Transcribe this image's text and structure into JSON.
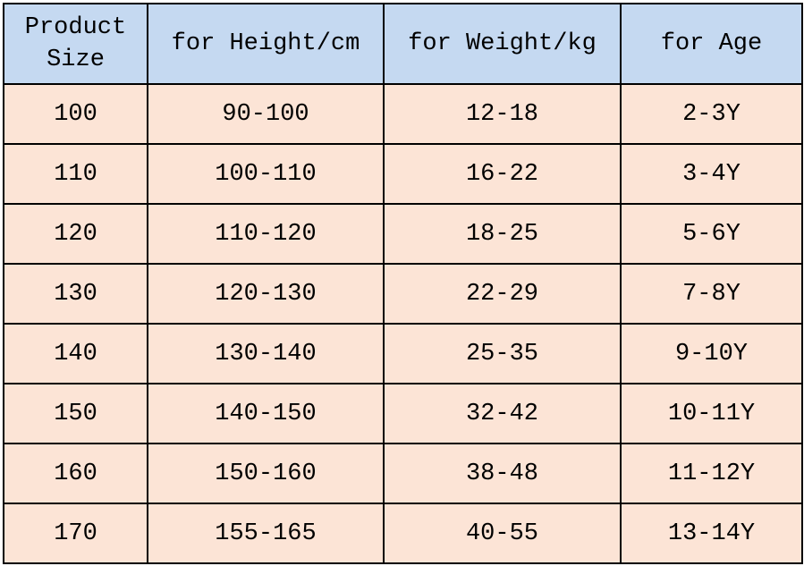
{
  "table": {
    "header": [
      "Product Size",
      "for Height/cm",
      "for Weight/kg",
      "for Age"
    ],
    "rows": [
      [
        "100",
        "90-100",
        "12-18",
        "2-3Y"
      ],
      [
        "110",
        "100-110",
        "16-22",
        "3-4Y"
      ],
      [
        "120",
        "110-120",
        "18-25",
        "5-6Y"
      ],
      [
        "130",
        "120-130",
        "22-29",
        "7-8Y"
      ],
      [
        "140",
        "130-140",
        "25-35",
        "9-10Y"
      ],
      [
        "150",
        "140-150",
        "32-42",
        "10-11Y"
      ],
      [
        "160",
        "150-160",
        "38-48",
        "11-12Y"
      ],
      [
        "170",
        "155-165",
        "40-55",
        "13-14Y"
      ]
    ]
  }
}
